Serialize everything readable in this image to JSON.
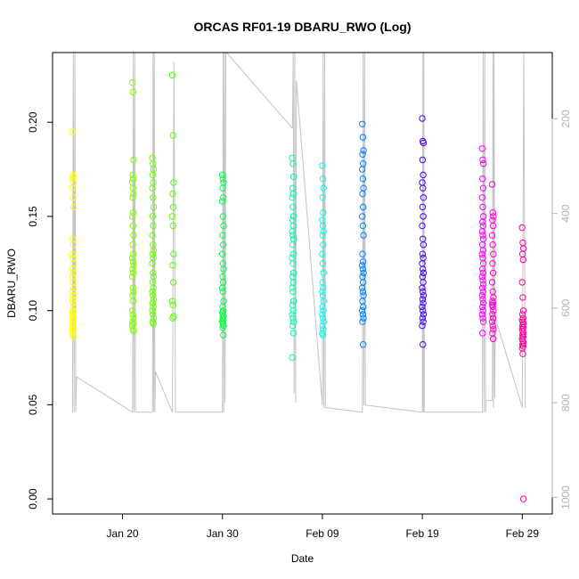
{
  "chart_data": {
    "type": "scatter",
    "title": "ORCAS RF01-19 DBARU_RWO (Log)",
    "xlabel": "Date",
    "ylabel": "DBARU_RWO",
    "ylim": [
      -0.008,
      0.237
    ],
    "y2lim": [
      1035,
      60
    ],
    "y2_reversed": true,
    "xlim": [
      "2016-01-13",
      "2016-03-03"
    ],
    "x_ticks": [
      {
        "date": "2016-01-20",
        "label": "Jan 20"
      },
      {
        "date": "2016-01-30",
        "label": "Jan 30"
      },
      {
        "date": "2016-02-09",
        "label": "Feb 09"
      },
      {
        "date": "2016-02-19",
        "label": "Feb 19"
      },
      {
        "date": "2016-02-29",
        "label": "Feb 29"
      }
    ],
    "y_ticks": [
      "0.00",
      "0.05",
      "0.10",
      "0.15",
      "0.20"
    ],
    "y2_ticks": [
      "200",
      "400",
      "600",
      "800",
      "1000"
    ],
    "grid": false,
    "flights": [
      {
        "date": "2016-01-15",
        "color": "#ffff00",
        "values": [
          0.195,
          0.172,
          0.171,
          0.17,
          0.168,
          0.165,
          0.16,
          0.155,
          0.138,
          0.135,
          0.13,
          0.128,
          0.125,
          0.122,
          0.12,
          0.118,
          0.115,
          0.112,
          0.11,
          0.108,
          0.106,
          0.104,
          0.102,
          0.1,
          0.099,
          0.098,
          0.097,
          0.096,
          0.095,
          0.094,
          0.093,
          0.092,
          0.091,
          0.09,
          0.089,
          0.088,
          0.087,
          0.086
        ]
      },
      {
        "date": "2016-01-21",
        "color": "#80ff00",
        "values": [
          0.221,
          0.216,
          0.18,
          0.172,
          0.17,
          0.168,
          0.165,
          0.162,
          0.16,
          0.152,
          0.15,
          0.145,
          0.14,
          0.135,
          0.13,
          0.128,
          0.126,
          0.124,
          0.122,
          0.12,
          0.118,
          0.112,
          0.11,
          0.108,
          0.105,
          0.1,
          0.098,
          0.096,
          0.094,
          0.093,
          0.092,
          0.09,
          0.089
        ]
      },
      {
        "date": "2016-01-23",
        "color": "#66ff00",
        "values": [
          0.181,
          0.178,
          0.175,
          0.172,
          0.168,
          0.165,
          0.16,
          0.155,
          0.15,
          0.145,
          0.14,
          0.135,
          0.132,
          0.13,
          0.128,
          0.125,
          0.12,
          0.118,
          0.115,
          0.112,
          0.11,
          0.108,
          0.106,
          0.104,
          0.102,
          0.1,
          0.098,
          0.096,
          0.094,
          0.093
        ]
      },
      {
        "date": "2016-01-25",
        "color": "#55ff00",
        "values": [
          0.225,
          0.193,
          0.168,
          0.162,
          0.155,
          0.15,
          0.145,
          0.13,
          0.124,
          0.115,
          0.105,
          0.103,
          0.097,
          0.096
        ]
      },
      {
        "date": "2016-01-30",
        "color": "#00ff44",
        "values": [
          0.172,
          0.17,
          0.168,
          0.165,
          0.16,
          0.158,
          0.15,
          0.145,
          0.14,
          0.135,
          0.13,
          0.125,
          0.122,
          0.118,
          0.115,
          0.112,
          0.11,
          0.105,
          0.102,
          0.1,
          0.099,
          0.098,
          0.097,
          0.096,
          0.095,
          0.094,
          0.093,
          0.092,
          0.091,
          0.087
        ]
      },
      {
        "date": "2016-02-06",
        "color": "#00ffaa",
        "values": [
          0.181,
          0.178,
          0.171,
          0.165,
          0.162,
          0.16,
          0.155,
          0.15,
          0.148,
          0.145,
          0.142,
          0.14,
          0.138,
          0.135,
          0.13,
          0.128,
          0.125,
          0.12,
          0.118,
          0.115,
          0.112,
          0.11,
          0.105,
          0.103,
          0.1,
          0.098,
          0.096,
          0.094,
          0.092,
          0.088,
          0.075
        ]
      },
      {
        "date": "2016-02-09",
        "color": "#00ffee",
        "values": [
          0.177,
          0.17,
          0.165,
          0.16,
          0.152,
          0.148,
          0.145,
          0.142,
          0.14,
          0.135,
          0.13,
          0.125,
          0.12,
          0.115,
          0.112,
          0.11,
          0.108,
          0.105,
          0.102,
          0.1,
          0.098,
          0.096,
          0.094,
          0.092,
          0.09,
          0.088,
          0.087
        ]
      },
      {
        "date": "2016-02-13",
        "color": "#0080ff",
        "values": [
          0.199,
          0.192,
          0.185,
          0.183,
          0.178,
          0.175,
          0.17,
          0.165,
          0.162,
          0.155,
          0.15,
          0.145,
          0.14,
          0.13,
          0.126,
          0.124,
          0.122,
          0.12,
          0.118,
          0.115,
          0.112,
          0.11,
          0.108,
          0.105,
          0.102,
          0.1,
          0.098,
          0.096,
          0.094,
          0.082
        ]
      },
      {
        "date": "2016-02-19",
        "color": "#4400ff",
        "values": [
          0.202,
          0.19,
          0.189,
          0.18,
          0.172,
          0.168,
          0.165,
          0.16,
          0.155,
          0.15,
          0.145,
          0.138,
          0.135,
          0.13,
          0.128,
          0.125,
          0.122,
          0.12,
          0.118,
          0.115,
          0.112,
          0.11,
          0.108,
          0.106,
          0.104,
          0.102,
          0.1,
          0.098,
          0.096,
          0.094,
          0.092,
          0.082
        ]
      },
      {
        "date": "2016-02-25",
        "color": "#ff00ff",
        "values": [
          0.186,
          0.18,
          0.178,
          0.17,
          0.165,
          0.16,
          0.155,
          0.15,
          0.147,
          0.145,
          0.142,
          0.14,
          0.138,
          0.135,
          0.132,
          0.13,
          0.128,
          0.125,
          0.122,
          0.12,
          0.118,
          0.116,
          0.114,
          0.112,
          0.11,
          0.108,
          0.106,
          0.104,
          0.102,
          0.1,
          0.098,
          0.096,
          0.094,
          0.088
        ]
      },
      {
        "date": "2016-02-26",
        "color": "#ff00cc",
        "values": [
          0.167,
          0.152,
          0.15,
          0.148,
          0.145,
          0.14,
          0.135,
          0.13,
          0.125,
          0.12,
          0.115,
          0.11,
          0.107,
          0.105,
          0.104,
          0.103,
          0.102,
          0.1,
          0.098,
          0.096,
          0.094,
          0.092,
          0.09,
          0.088,
          0.085
        ]
      },
      {
        "date": "2016-02-29",
        "color": "#ff0099",
        "values": [
          0.144,
          0.136,
          0.133,
          0.13,
          0.127,
          0.115,
          0.107,
          0.1,
          0.098,
          0.096,
          0.095,
          0.094,
          0.093,
          0.092,
          0.091,
          0.09,
          0.089,
          0.088,
          0.087,
          0.086,
          0.085,
          0.084,
          0.083,
          0.082,
          0.081,
          0.08,
          0.077,
          0.0
        ]
      }
    ],
    "pressure_track": {
      "color": "#c4c4c4",
      "series": "pressure (right axis, hPa)",
      "flight_segments": [
        {
          "d0": "2016-01-15",
          "d1": "2016-01-15.4",
          "p": [
            820,
            60,
            820,
            60,
            820,
            745
          ]
        },
        {
          "d0": "2016-01-21",
          "d1": "2016-01-21.3",
          "p": [
            820,
            60,
            820,
            60,
            820
          ]
        },
        {
          "d0": "2016-01-23",
          "d1": "2016-01-23.3",
          "p": [
            820,
            60,
            820,
            60,
            820,
            735
          ]
        },
        {
          "d0": "2016-01-25",
          "d1": "2016-01-25.3",
          "p": [
            820,
            80,
            820
          ]
        },
        {
          "d0": "2016-01-30",
          "d1": "2016-01-30.4",
          "p": [
            820,
            60,
            820,
            60,
            800,
            60,
            60
          ]
        },
        {
          "d0": "2016-02-06",
          "d1": "2016-02-06.4",
          "p": [
            220,
            60,
            780,
            60,
            800,
            120
          ]
        },
        {
          "d0": "2016-02-09",
          "d1": "2016-02-09.3",
          "p": [
            805,
            60,
            810,
            60,
            810
          ]
        },
        {
          "d0": "2016-02-13",
          "d1": "2016-02-13.3",
          "p": [
            820,
            60,
            805,
            60,
            805
          ]
        },
        {
          "d0": "2016-02-19",
          "d1": "2016-02-19.2",
          "p": [
            820,
            60,
            820,
            60,
            820
          ]
        },
        {
          "d0": "2016-02-25",
          "d1": "2016-02-25.4",
          "p": [
            820,
            60,
            820,
            60,
            820,
            795
          ]
        },
        {
          "d0": "2016-02-26",
          "d1": "2016-02-26.3",
          "p": [
            795,
            60,
            810,
            60,
            790,
            620
          ]
        },
        {
          "d0": "2016-02-29",
          "d1": "2016-02-29.3",
          "p": [
            810,
            60,
            810
          ]
        }
      ]
    }
  }
}
